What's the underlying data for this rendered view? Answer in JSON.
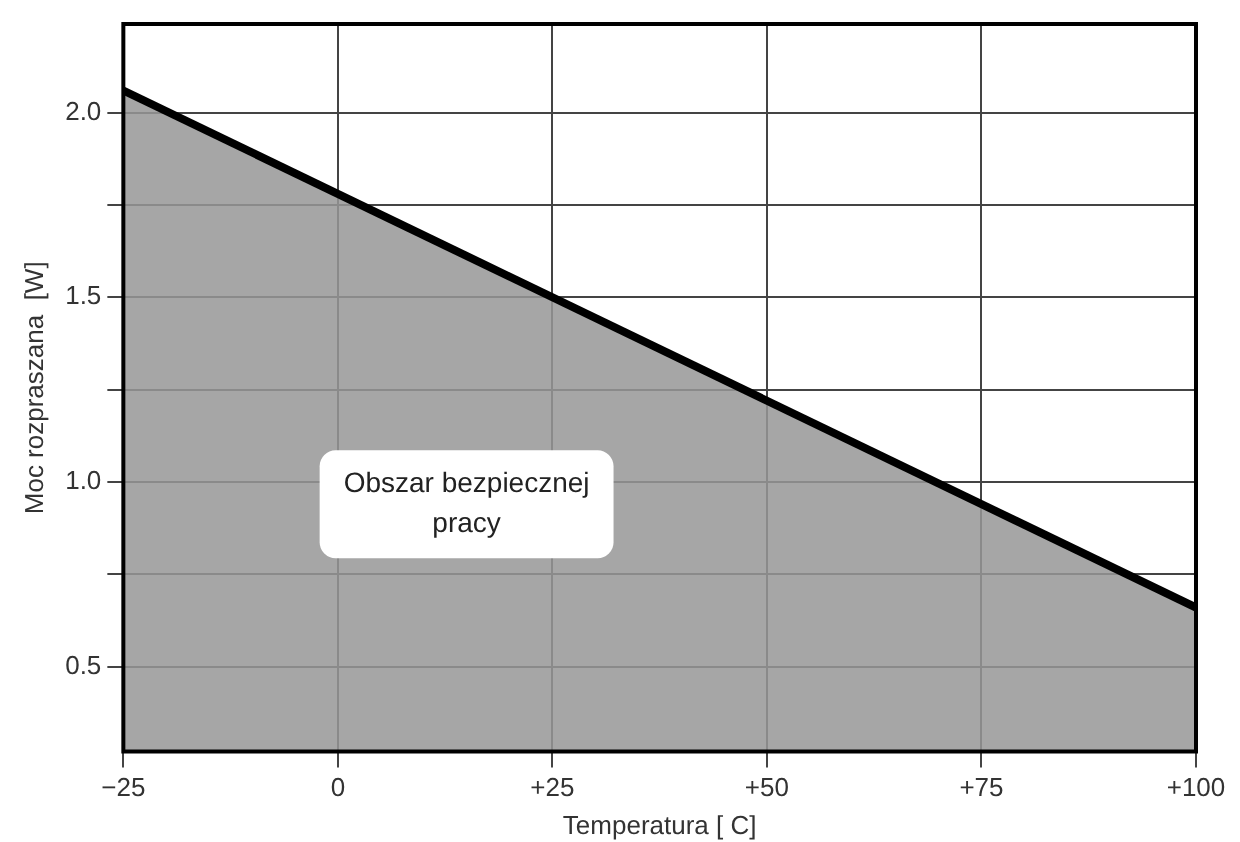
{
  "chart_data": {
    "type": "area",
    "x": [
      -25,
      100
    ],
    "series": [
      {
        "color": "#000000",
        "values": [
          2.06,
          0.66
        ]
      }
    ],
    "xlabel": "Temperatura [ C]",
    "ylabel": "Moc rozpraszana  [W]",
    "xlim": [
      -25,
      100
    ],
    "xticks": [
      {
        "value": -25,
        "label": "−25"
      },
      0,
      {
        "value": 25,
        "label": "+25"
      },
      {
        "value": 50,
        "label": "+50"
      },
      {
        "value": 75,
        "label": "+75"
      },
      {
        "value": 100,
        "label": "+100"
      }
    ],
    "ylim": [
      0.27,
      2.24
    ],
    "yticks": [
      {
        "value": 0.5,
        "label": "0.5"
      },
      {
        "value": 0.75,
        "label": null
      },
      {
        "value": 1,
        "label": "1.0"
      },
      {
        "value": 1.25,
        "label": null
      },
      {
        "value": 1.5,
        "label": "1.5"
      },
      {
        "value": 1.75,
        "label": null
      },
      {
        "value": 2,
        "label": "2.0"
      }
    ],
    "grid": true,
    "legend": false,
    "marker": "none",
    "line_style": "solid",
    "annotations": [
      "Obszar bezpiecznej pracy"
    ]
  }
}
